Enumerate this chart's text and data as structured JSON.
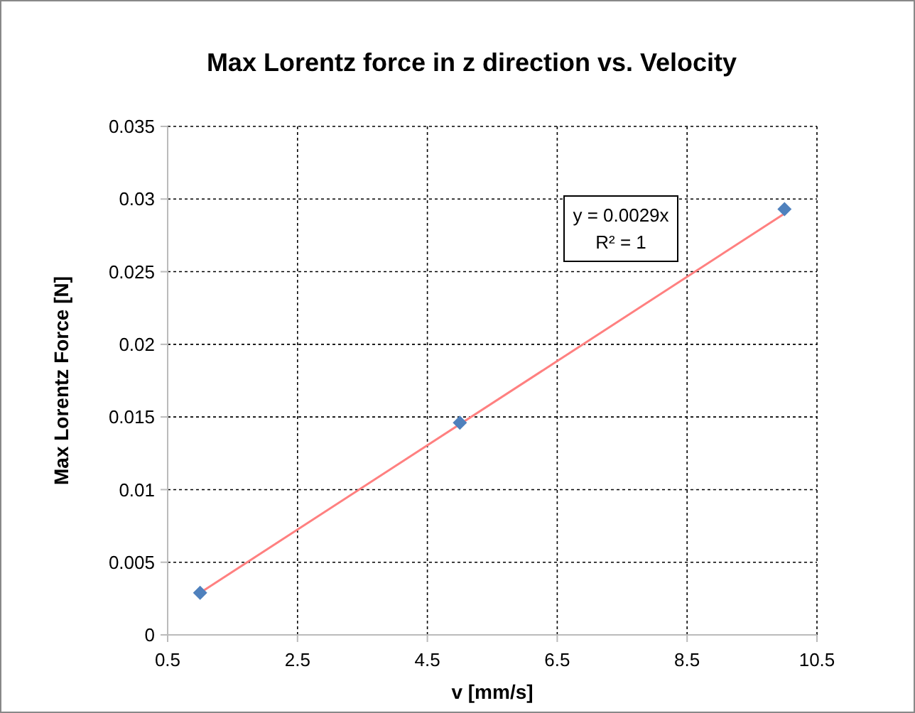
{
  "chart_data": {
    "type": "scatter",
    "title": "Max Lorentz force in z direction vs. Velocity",
    "xlabel": "v [mm/s]",
    "ylabel": "Max Lorentz Force [N]",
    "series": [
      {
        "color": "#4f81bd",
        "marker": "diamond",
        "x": [
          1,
          5,
          10
        ],
        "values": [
          0.0029,
          0.0146,
          0.0293
        ]
      },
      {
        "type": "line",
        "color": "#ff8080",
        "marker": "none",
        "x": [
          1,
          10
        ],
        "values": [
          0.0029,
          0.029
        ]
      }
    ],
    "xlim": [
      0.5,
      10.5
    ],
    "xticks": [
      0.5,
      2.5,
      4.5,
      6.5,
      8.5,
      10.5
    ],
    "ylim": [
      0,
      0.035
    ],
    "yticks": [
      0,
      0.005,
      0.01,
      0.015,
      0.02,
      0.025,
      0.03,
      0.035
    ],
    "grid": true,
    "annotations": [
      "y = 0.0029x",
      "R² = 1"
    ]
  }
}
